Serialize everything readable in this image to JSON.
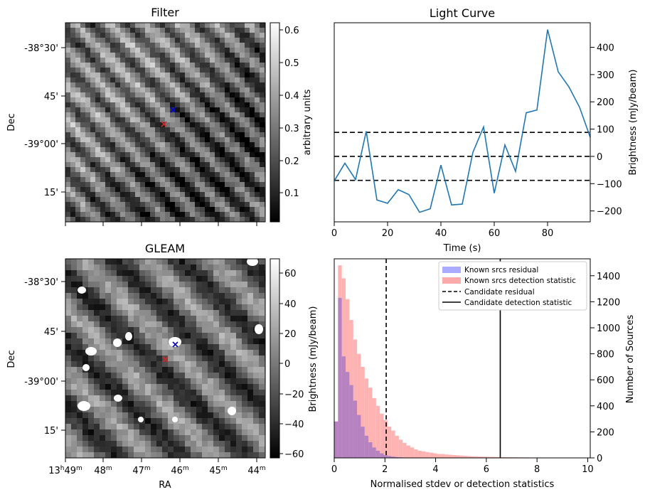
{
  "colors": {
    "curve": "#1f77b4",
    "residual_fill": "#aaaaff",
    "detection_fill": "#ffaaaa",
    "marker_blue": "#0000cc",
    "marker_red": "#dd2222"
  },
  "filter_panel": {
    "title": "Filter",
    "ylabel": "Dec",
    "yticks": [
      "-38°30'",
      "45'",
      "-39°00'",
      "15'"
    ],
    "colorbar_label": "arbitrary units",
    "colorbar_ticks": [
      "0.6",
      "0.5",
      "0.4",
      "0.3",
      "0.2",
      "0.1"
    ]
  },
  "gleam_panel": {
    "title": "GLEAM",
    "ylabel": "Dec",
    "xlabel": "RA",
    "yticks": [
      "-38°30'",
      "45'",
      "-39°00'",
      "15'"
    ],
    "xticks": [
      {
        "h": "13",
        "hs": "h",
        "m": "49",
        "ms": "m"
      },
      {
        "h": "",
        "hs": "",
        "m": "48",
        "ms": "m"
      },
      {
        "h": "",
        "hs": "",
        "m": "47",
        "ms": "m"
      },
      {
        "h": "",
        "hs": "",
        "m": "46",
        "ms": "m"
      },
      {
        "h": "",
        "hs": "",
        "m": "45",
        "ms": "m"
      },
      {
        "h": "",
        "hs": "",
        "m": "44",
        "ms": "m"
      }
    ],
    "colorbar_label": "Brightness (mJy/beam)",
    "colorbar_ticks": [
      "60",
      "40",
      "20",
      "0",
      "−20",
      "−40",
      "−60"
    ]
  },
  "chart_data": [
    {
      "type": "line",
      "title": "Light Curve",
      "xlabel": "Time (s)",
      "ylabel": "Brightness (mJy/beam)",
      "xlim": [
        0,
        96
      ],
      "ylim": [
        -240,
        490
      ],
      "xticks": [
        "0",
        "20",
        "40",
        "60",
        "80"
      ],
      "yticks": [
        "400",
        "300",
        "200",
        "100",
        "0",
        "−100",
        "−200"
      ],
      "x": [
        0,
        4,
        8,
        12,
        16,
        20,
        24,
        28,
        32,
        36,
        40,
        44,
        48,
        52,
        56,
        60,
        64,
        68,
        72,
        76,
        80,
        84,
        88,
        92,
        96
      ],
      "y": [
        -90,
        -25,
        -85,
        92,
        -160,
        -172,
        -122,
        -140,
        -205,
        -192,
        -32,
        -178,
        -175,
        15,
        108,
        -135,
        42,
        -55,
        160,
        170,
        465,
        310,
        255,
        180,
        70
      ],
      "hlines": [
        88,
        0,
        -88
      ],
      "hline_style": "dashed"
    },
    {
      "type": "histogram",
      "xlabel": "Normalised stdev or detection statistics",
      "ylabel": "Number of Sources",
      "xlim": [
        0,
        10.1
      ],
      "ylim": [
        0,
        1530
      ],
      "xticks": [
        "0",
        "2",
        "4",
        "6",
        "8",
        "10"
      ],
      "yticks": [
        "1400",
        "1200",
        "1000",
        "800",
        "600",
        "400",
        "200",
        "0"
      ],
      "bin_width": 0.15,
      "series": [
        {
          "name": "Known srcs residual",
          "values": [
            280,
            1230,
            780,
            660,
            560,
            440,
            330,
            240,
            170,
            120,
            80,
            55,
            35,
            22,
            15,
            10,
            6,
            4,
            2
          ]
        },
        {
          "name": "Known srcs detection statistic",
          "values": [
            280,
            1480,
            1380,
            1220,
            1060,
            910,
            800,
            700,
            610,
            540,
            460,
            400,
            340,
            290,
            240,
            210,
            170,
            140,
            115,
            95,
            80,
            65,
            55,
            50,
            45,
            40,
            35,
            30,
            30,
            26,
            24,
            22,
            20,
            18,
            16,
            14,
            12,
            11,
            10,
            9,
            8,
            8,
            7,
            6,
            6,
            5,
            5,
            5,
            4,
            4,
            4,
            3,
            3,
            3,
            3,
            2,
            2,
            2,
            2,
            2,
            2,
            2,
            1,
            1,
            1,
            1,
            1
          ]
        }
      ],
      "vlines": [
        {
          "name": "Candidate residual",
          "x": 2.05,
          "style": "dashed"
        },
        {
          "name": "Candidate detection statistic",
          "x": 6.55,
          "style": "solid"
        }
      ]
    }
  ]
}
